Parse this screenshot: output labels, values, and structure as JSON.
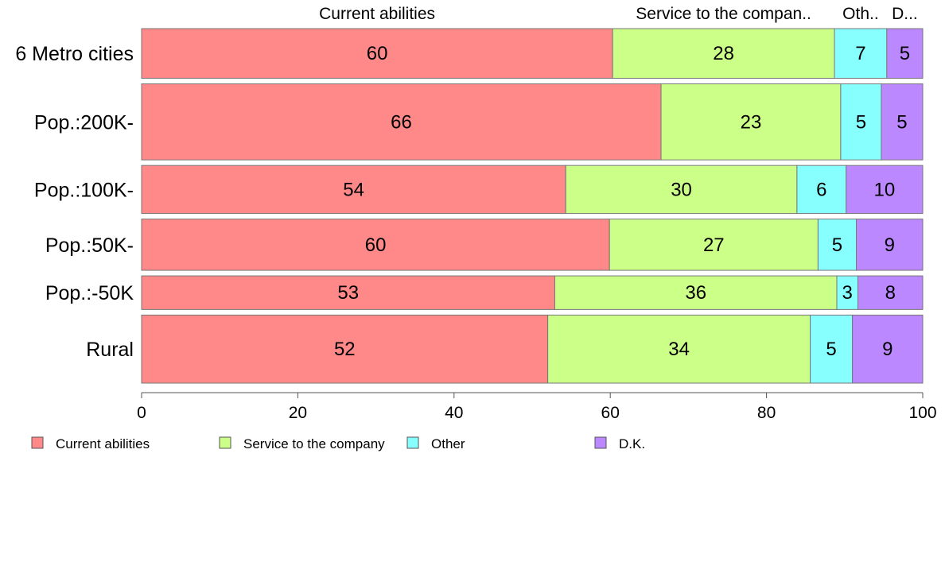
{
  "chart_data": {
    "type": "bar",
    "orientation": "horizontal",
    "stacked": true,
    "xlim": [
      0,
      100
    ],
    "xticks": [
      0,
      20,
      40,
      60,
      80,
      100
    ],
    "grid": false,
    "legend_position": "bottom-left",
    "top_labels": [
      "Current abilities",
      "Service to the compan..",
      "Oth..",
      "D..."
    ],
    "categories": [
      "6 Metro cities",
      "Pop.:200K-",
      "Pop.:100K-",
      "Pop.:50K-",
      "Pop.:-50K",
      "Rural"
    ],
    "row_weights": [
      62,
      95,
      60,
      64,
      42,
      85
    ],
    "series": [
      {
        "name": "Current abilities",
        "color": "#ff8888",
        "values": [
          60.3,
          66.5,
          54.3,
          59.9,
          52.9,
          52.0
        ],
        "labels": [
          "60",
          "66",
          "54",
          "60",
          "53",
          "52"
        ]
      },
      {
        "name": "Service to the company",
        "color": "#ccff88",
        "values": [
          28.4,
          23.0,
          29.6,
          26.7,
          36.1,
          33.6
        ],
        "labels": [
          "28",
          "23",
          "30",
          "27",
          "36",
          "34"
        ]
      },
      {
        "name": "Other",
        "color": "#88ffff",
        "values": [
          6.7,
          5.2,
          6.3,
          4.9,
          2.7,
          5.4
        ],
        "labels": [
          "7",
          "5",
          "6",
          "5",
          "3",
          "5"
        ]
      },
      {
        "name": "D.K.",
        "color": "#bb88ff",
        "values": [
          4.6,
          5.3,
          9.8,
          8.5,
          8.3,
          9.0
        ],
        "labels": [
          "5",
          "5",
          "10",
          "9",
          "8",
          "9"
        ]
      }
    ]
  }
}
